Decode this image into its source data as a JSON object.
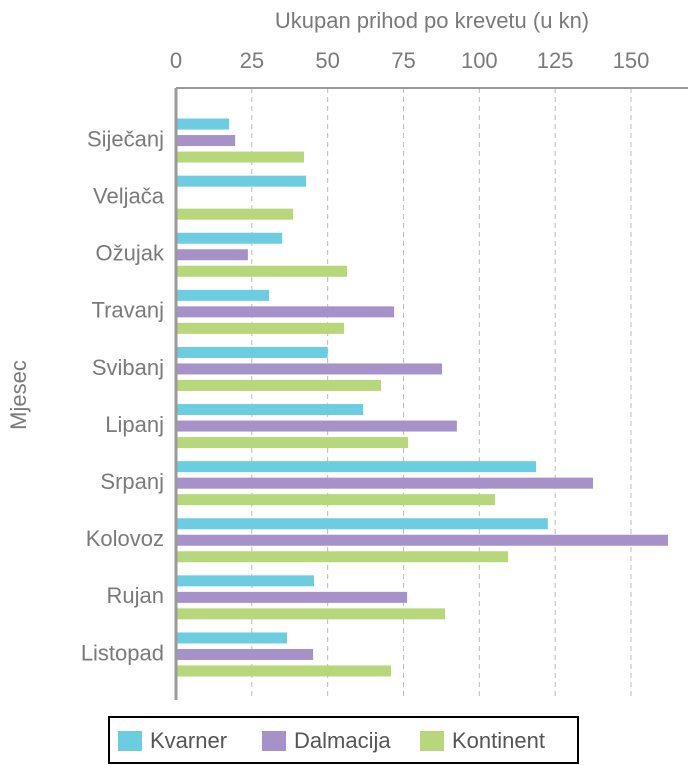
{
  "chart_data": {
    "type": "barh",
    "x_label": "Ukupan prihod po krevetu (u kn)",
    "y_label": "Mjesec",
    "categories": [
      "Siječanj",
      "Veljača",
      "Ožujak",
      "Travanj",
      "Svibanj",
      "Lipanj",
      "Srpanj",
      "Kolovoz",
      "Rujan",
      "Listopad"
    ],
    "series": [
      {
        "name": "Kvarner",
        "color": "#6dcde0",
        "values": [
          17.5,
          42.9,
          35,
          30.7,
          50,
          61.7,
          118.7,
          122.6,
          45.5,
          36.6
        ]
      },
      {
        "name": "Dalmacija",
        "color": "#a692c9",
        "values": [
          19.5,
          0,
          23.7,
          71.9,
          87.7,
          92.6,
          137.5,
          162.2,
          76.2,
          45.2
        ]
      },
      {
        "name": "Kontinent",
        "color": "#b6d87a",
        "values": [
          42.2,
          38.6,
          56.4,
          55.4,
          67.6,
          76.5,
          105.2,
          109.5,
          88.7,
          70.9
        ]
      }
    ],
    "xlim": [
      0,
      168.8
    ],
    "xticks": [
      0,
      25,
      50,
      75,
      100,
      125,
      150
    ],
    "grid": true,
    "legend": "bottom"
  }
}
